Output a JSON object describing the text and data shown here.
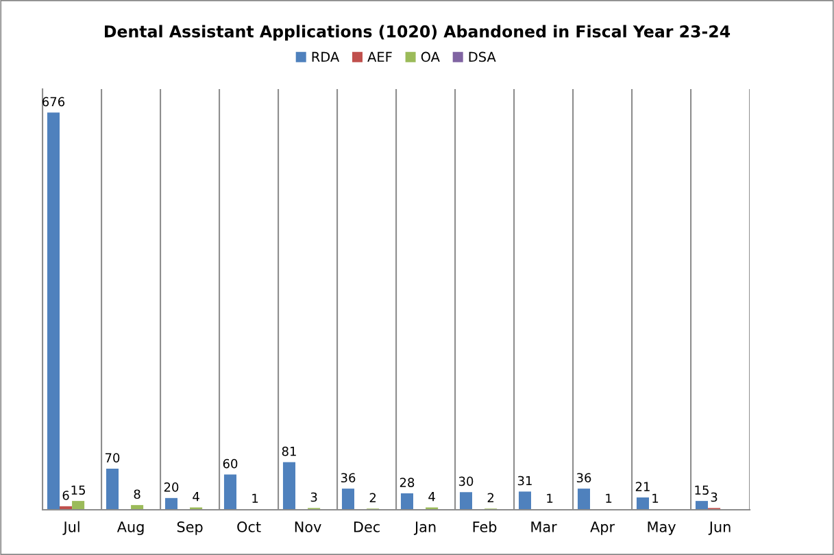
{
  "chart_data": {
    "type": "bar",
    "title": "Dental Assistant Applications (1020) Abandoned in Fiscal Year 23-24",
    "categories": [
      "Jul",
      "Aug",
      "Sep",
      "Oct",
      "Nov",
      "Dec",
      "Jan",
      "Feb",
      "Mar",
      "Apr",
      "May",
      "Jun"
    ],
    "series": [
      {
        "name": "RDA",
        "color": "#4f81bd",
        "values": [
          676,
          70,
          20,
          60,
          81,
          36,
          28,
          30,
          31,
          36,
          21,
          15
        ],
        "value_labels": [
          "676",
          "70",
          "20",
          "60",
          "81",
          "36",
          "28",
          "30",
          "31",
          "36",
          "21",
          "15"
        ]
      },
      {
        "name": "AEF",
        "color": "#c0504d",
        "values": [
          6,
          0,
          0,
          0,
          0,
          0,
          0,
          0,
          0,
          0,
          1,
          3
        ],
        "value_labels": [
          "6",
          null,
          null,
          null,
          null,
          null,
          null,
          null,
          null,
          null,
          "1",
          "3"
        ]
      },
      {
        "name": "OA",
        "color": "#9bbb59",
        "values": [
          15,
          8,
          4,
          1,
          3,
          2,
          4,
          2,
          1,
          1,
          0,
          0
        ],
        "value_labels": [
          "15",
          "8",
          "4",
          "1",
          "3",
          "2",
          "4",
          "2",
          "1",
          "1",
          null,
          null
        ]
      },
      {
        "name": "DSA",
        "color": "#8064a2",
        "values": [
          0,
          0,
          0,
          0,
          0,
          0,
          0,
          0,
          0,
          0,
          0,
          0
        ],
        "value_labels": [
          null,
          null,
          null,
          null,
          null,
          null,
          null,
          null,
          null,
          null,
          null,
          null
        ]
      }
    ],
    "ylim": [
      0,
      716
    ],
    "tick_labels": "x",
    "grid": "x",
    "legend": "top"
  }
}
